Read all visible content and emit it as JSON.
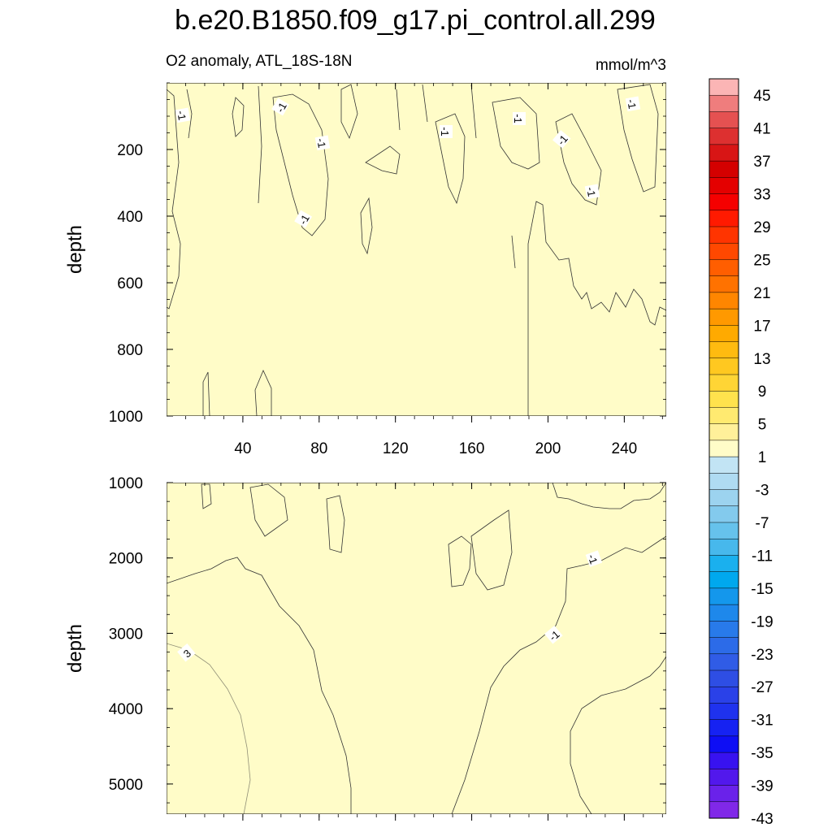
{
  "chart_data": {
    "type": "contour",
    "title": "b.e20.B1850.f09_g17.pi_control.all.299",
    "subtitle_left": "O2 anomaly, ATL_18S-18N",
    "subtitle_right": "mmol/m^3",
    "x_ticks": [
      "40",
      "80",
      "120",
      "160",
      "200",
      "240"
    ],
    "x_tick_values": [
      40,
      80,
      120,
      160,
      200,
      240
    ],
    "xlim": [
      0,
      262
    ],
    "panels": [
      {
        "name": "upper",
        "ylabel": "depth",
        "ylim": [
          0,
          1000
        ],
        "y_ticks": [
          "200",
          "400",
          "600",
          "800",
          "1000"
        ],
        "y_tick_values": [
          200,
          400,
          600,
          800,
          1000
        ],
        "contour_labels": [
          "-1",
          "-1",
          "-1",
          "-1",
          "-1",
          "-1",
          "-1",
          "-1",
          "-1"
        ]
      },
      {
        "name": "lower",
        "ylabel": "depth",
        "ylim": [
          1000,
          5400
        ],
        "y_ticks": [
          "1000",
          "2000",
          "3000",
          "4000",
          "5000"
        ],
        "y_tick_values": [
          1000,
          2000,
          3000,
          4000,
          5000
        ],
        "contour_labels": [
          "3",
          "-1",
          "-1"
        ]
      }
    ],
    "colorbar": {
      "labels": [
        "45",
        "41",
        "37",
        "33",
        "29",
        "25",
        "21",
        "17",
        "13",
        "9",
        "5",
        "1",
        "-3",
        "-7",
        "-11",
        "-15",
        "-19",
        "-23",
        "-27",
        "-31",
        "-35",
        "-39",
        "-43"
      ],
      "colors": [
        "#FBB5B5",
        "#EF7D7D",
        "#E55151",
        "#DD3030",
        "#D81515",
        "#D40000",
        "#E40000",
        "#F50000",
        "#FF1A00",
        "#FF3400",
        "#FF4800",
        "#FF5E00",
        "#FF7200",
        "#FF8600",
        "#FF9900",
        "#FFAA00",
        "#FFBB10",
        "#FFC820",
        "#FFD535",
        "#FFE24D",
        "#FFEA70",
        "#FFF09A",
        "#FFFCC8",
        "#C2E4F4",
        "#AFDBF2",
        "#9CD3EF",
        "#83CAED",
        "#66C2EC",
        "#47B8EC",
        "#1AB0EE",
        "#00A8EE",
        "#1497EC",
        "#1E88EB",
        "#287AEA",
        "#2C6BE8",
        "#305CE6",
        "#2E4EE4",
        "#2A41E8",
        "#1F32EE",
        "#1622F2",
        "#0E0EF4",
        "#3812F0",
        "#5218EC",
        "#6A22EA",
        "#8028E8"
      ]
    }
  }
}
